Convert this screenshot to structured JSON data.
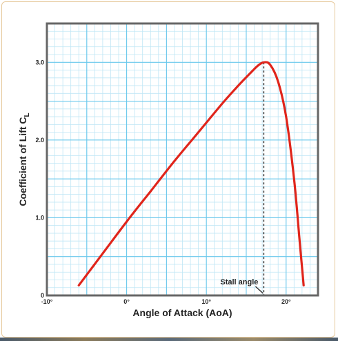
{
  "chart_data": {
    "type": "line",
    "title": "",
    "xlabel": "Angle of Attack (AoA)",
    "ylabel_main": "Coefficient of Lift C",
    "ylabel_sub": "L",
    "xlim": [
      -10,
      24
    ],
    "ylim": [
      0,
      3.5
    ],
    "grid": true,
    "x_ticks": [
      -10,
      0,
      10,
      20
    ],
    "x_tick_labels": [
      "-10°",
      "0°",
      "10°",
      "20°"
    ],
    "y_ticks": [
      0,
      1.0,
      2.0,
      3.0
    ],
    "y_tick_labels": [
      "0",
      "1.0",
      "2.0",
      "3.0"
    ],
    "series": [
      {
        "color": "#e0251b",
        "x": [
          -6,
          -3,
          0,
          3,
          6,
          9,
          12,
          14,
          15.5,
          16.5,
          17.2,
          18,
          19,
          20,
          21,
          21.7,
          22.2
        ],
        "y": [
          0.13,
          0.54,
          0.95,
          1.34,
          1.73,
          2.1,
          2.47,
          2.7,
          2.86,
          2.96,
          3.0,
          2.97,
          2.75,
          2.3,
          1.5,
          0.7,
          0.13
        ]
      }
    ],
    "annotations": [
      {
        "text": "Stall angle",
        "x": 17.2,
        "y": 3.0
      }
    ]
  }
}
